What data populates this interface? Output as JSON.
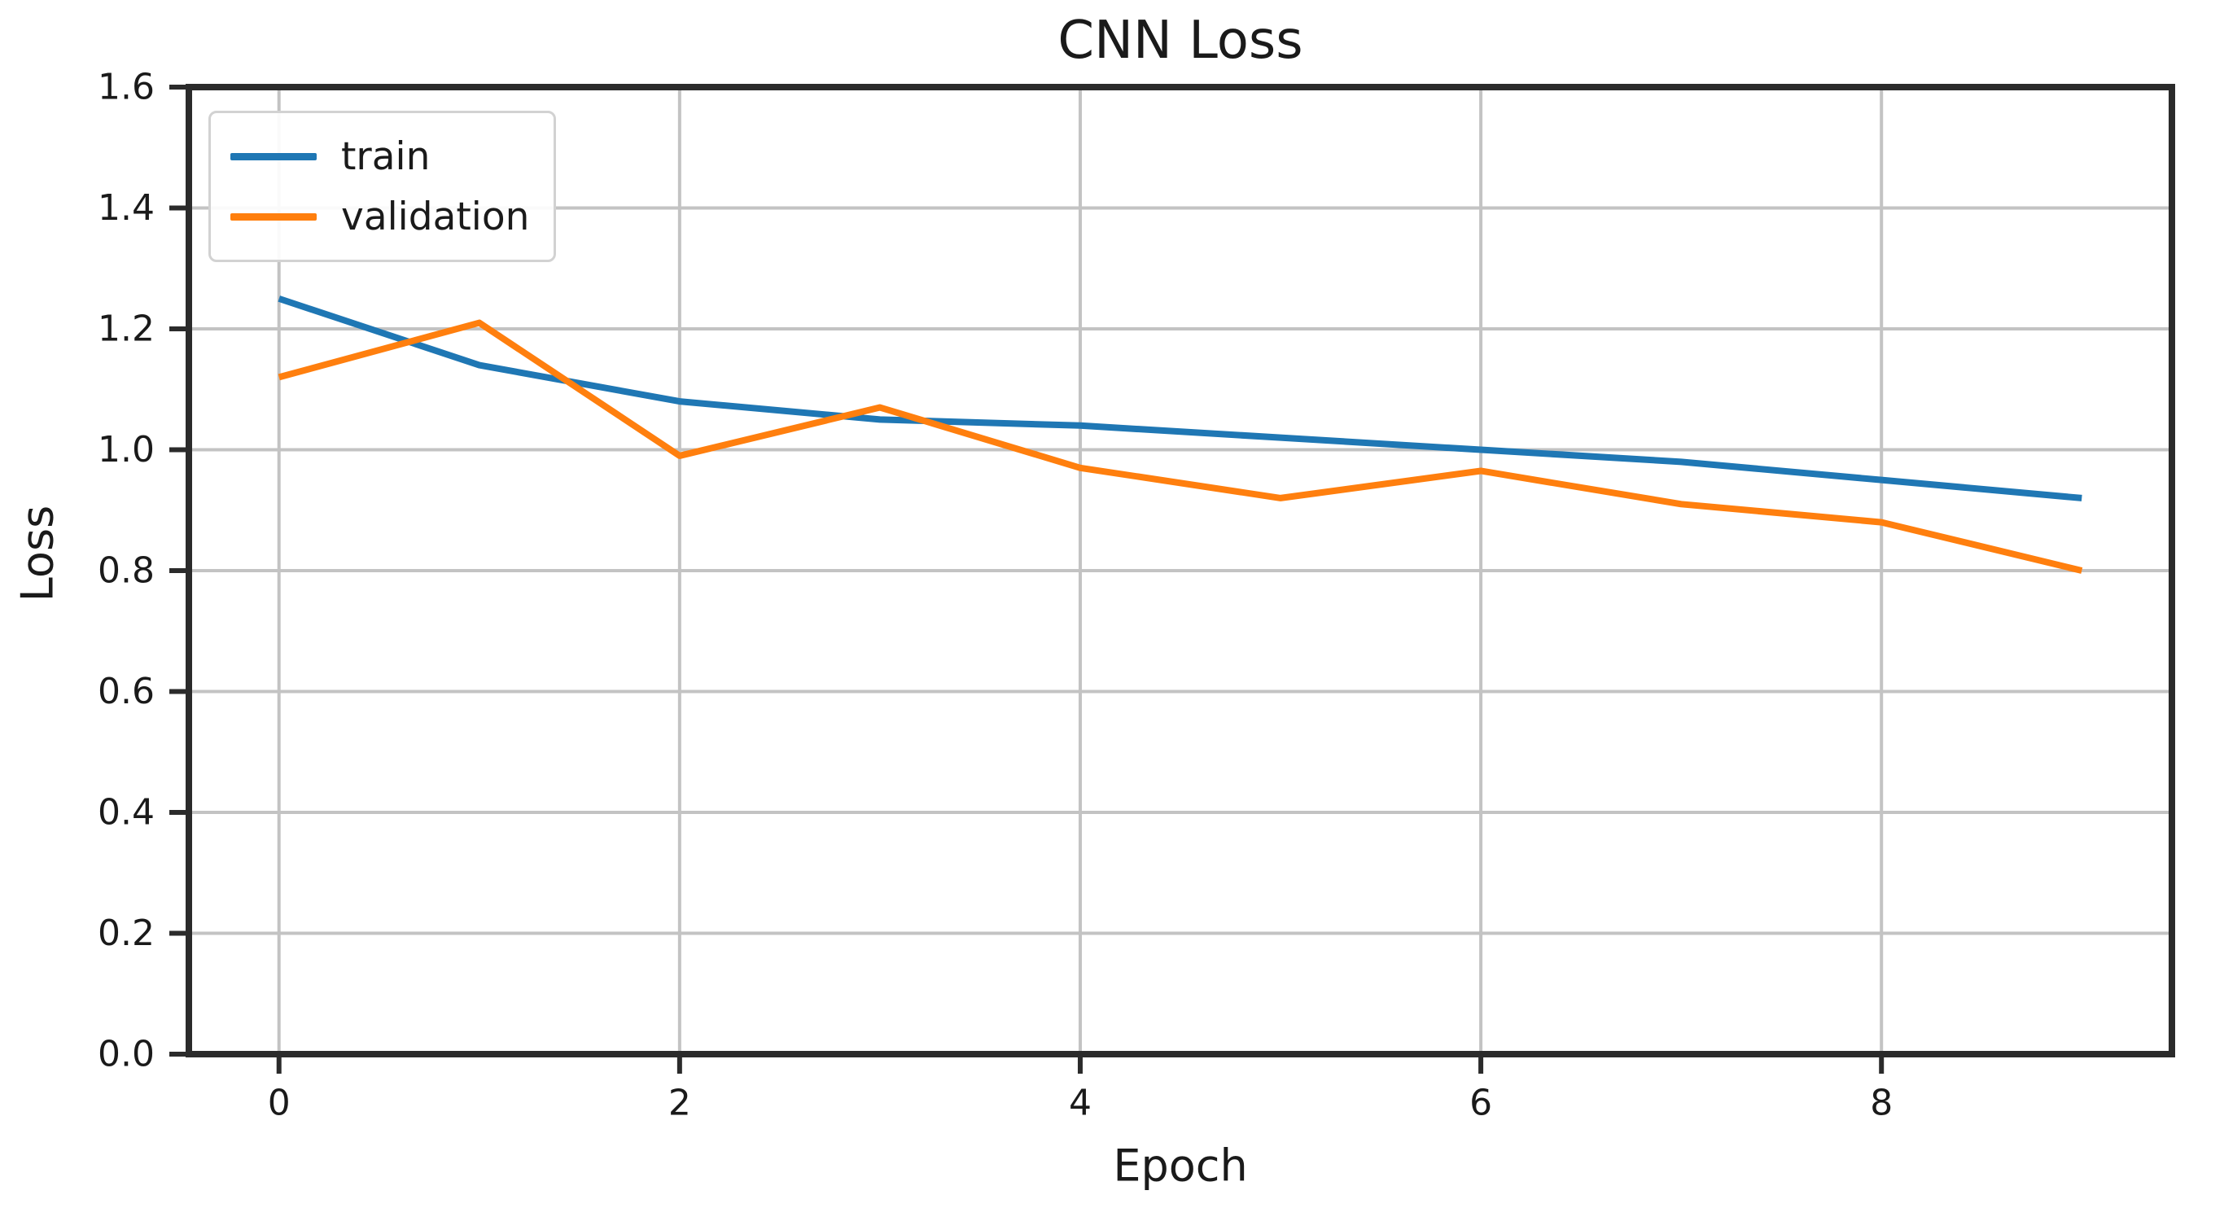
{
  "figure": {
    "background": "#ffffff",
    "axis_color": "#2b2b2b",
    "grid_color": "#c3c3c3",
    "text_color": "#1a1a1a"
  },
  "chart_data": {
    "type": "line",
    "title": "CNN Loss",
    "xlabel": "Epoch",
    "ylabel": "Loss",
    "x": [
      0,
      1,
      2,
      3,
      4,
      5,
      6,
      7,
      8,
      9
    ],
    "series": [
      {
        "name": "train",
        "color": "#1f77b4",
        "values": [
          1.25,
          1.14,
          1.08,
          1.05,
          1.04,
          1.02,
          1.0,
          0.98,
          0.95,
          0.92
        ]
      },
      {
        "name": "validation",
        "color": "#ff7f0e",
        "values": [
          1.12,
          1.21,
          0.99,
          1.07,
          0.97,
          0.92,
          0.965,
          0.91,
          0.88,
          0.8
        ]
      }
    ],
    "xlim": [
      -0.45,
      9.45
    ],
    "ylim": [
      0,
      1.6
    ],
    "xticks": [
      0,
      2,
      4,
      6,
      8
    ],
    "xtick_labels": [
      "0",
      "2",
      "4",
      "6",
      "8"
    ],
    "yticks": [
      0.0,
      0.2,
      0.4,
      0.6,
      0.8,
      1.0,
      1.2,
      1.4,
      1.6
    ],
    "ytick_labels": [
      "0.0",
      "0.2",
      "0.4",
      "0.6",
      "0.8",
      "1.0",
      "1.2",
      "1.4",
      "1.6"
    ],
    "grid": true,
    "legend_position": "upper left",
    "legend_labels": [
      "train",
      "validation"
    ]
  }
}
